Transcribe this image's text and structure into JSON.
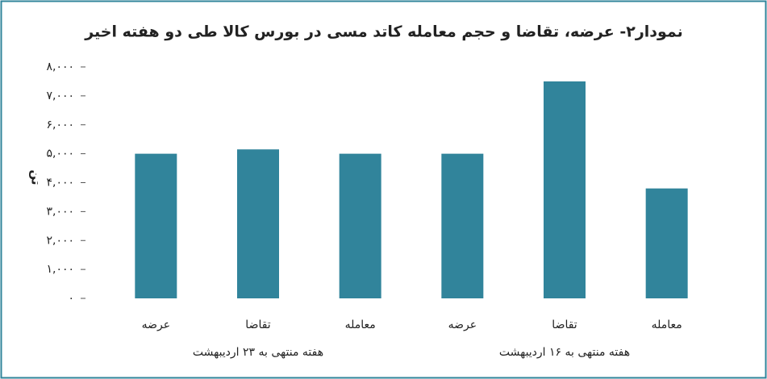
{
  "chart_data": {
    "type": "bar",
    "title": "نمودار۲- عرضه، تقاضا و حجم معامله کاتد مسی در بورس کالا طی دو هفته اخیر",
    "y_label": "تن",
    "categories": [
      "عرضه",
      "تقاضا",
      "معامله",
      "عرضه",
      "تقاضا",
      "معامله"
    ],
    "groups": [
      "هفته منتهی به ۲۳ اردیبهشت",
      "هفته منتهی به ۱۶ اردیبهشت"
    ],
    "values": [
      5000,
      5150,
      5000,
      5000,
      7500,
      3800
    ],
    "color": "#31849b",
    "ylim": [
      0,
      8000
    ],
    "yticks": [
      {
        "value": 0,
        "label": "۰"
      },
      {
        "value": 1000,
        "label": "۱,۰۰۰"
      },
      {
        "value": 2000,
        "label": "۲,۰۰۰"
      },
      {
        "value": 3000,
        "label": "۳,۰۰۰"
      },
      {
        "value": 4000,
        "label": "۴,۰۰۰"
      },
      {
        "value": 5000,
        "label": "۵,۰۰۰"
      },
      {
        "value": 6000,
        "label": "۶,۰۰۰"
      },
      {
        "value": 7000,
        "label": "۷,۰۰۰"
      },
      {
        "value": 8000,
        "label": "۸,۰۰۰"
      }
    ]
  }
}
